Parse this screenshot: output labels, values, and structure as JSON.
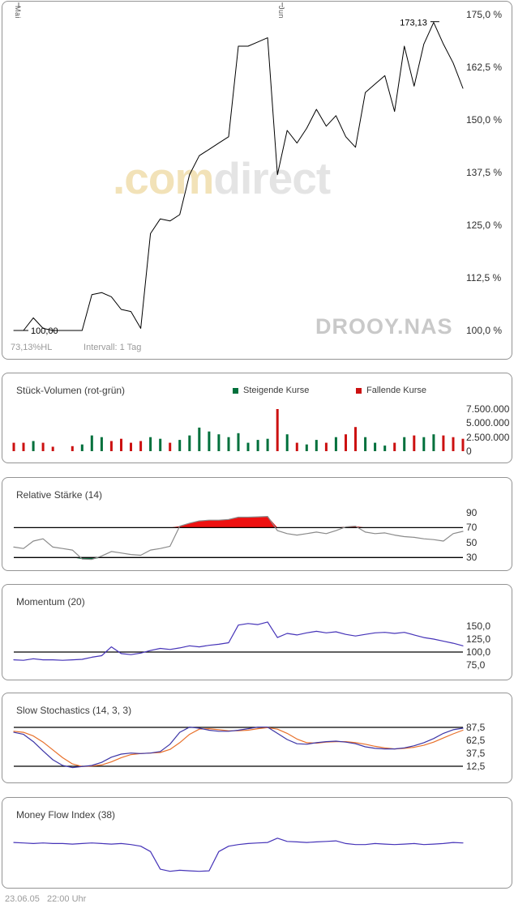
{
  "watermark": {
    "com": ".com",
    "direct": "direct",
    "symbol": "DROOY.NAS"
  },
  "footer": {
    "timestamp": "23.06.05   22:00 Uhr"
  },
  "chart_data": [
    {
      "type": "line",
      "name": "price-performance",
      "title": "",
      "footer_left": "73,13%HL",
      "footer_right": "Intervall: 1 Tag",
      "x_ticks": [
        {
          "label": "Mai",
          "index": 0
        },
        {
          "label": "Jun",
          "index": 27
        }
      ],
      "ylim": [
        100,
        175
      ],
      "y_unit": "%",
      "y_ticks": [
        {
          "label": "175,0 %",
          "value": 175
        },
        {
          "label": "162,5 %",
          "value": 162.5
        },
        {
          "label": "150,0 %",
          "value": 150
        },
        {
          "label": "137,5 %",
          "value": 137.5
        },
        {
          "label": "125,0 %",
          "value": 125
        },
        {
          "label": "112,5 %",
          "value": 112.5
        },
        {
          "label": "100,0 %",
          "value": 100
        }
      ],
      "annotations": [
        {
          "text": "100,00",
          "index": 0,
          "value": 100,
          "placement": "right"
        },
        {
          "text": "173,13",
          "index": 43,
          "value": 173.13,
          "placement": "left-above"
        }
      ],
      "series": [
        {
          "name": "Kurs",
          "color": "#000000",
          "values": [
            100,
            100,
            103,
            100.5,
            100,
            100,
            100,
            100,
            108.5,
            109,
            108,
            105,
            104.5,
            100.5,
            123,
            126.5,
            126,
            127.5,
            137,
            141.5,
            143,
            144.5,
            146,
            167.5,
            167.5,
            168.5,
            169.5,
            137,
            147.5,
            144.5,
            148,
            152.5,
            148.5,
            151,
            146,
            143.5,
            156.5,
            158.5,
            160.5,
            152,
            167.5,
            158,
            168,
            173.13,
            168,
            163.5,
            157.5
          ]
        }
      ]
    },
    {
      "type": "bar",
      "name": "volume",
      "title": "Stück-Volumen (rot-grün)",
      "legend": [
        {
          "label": "Steigende Kurse",
          "color": "#00703c",
          "key": "up"
        },
        {
          "label": "Fallende Kurse",
          "color": "#cc1111",
          "key": "down"
        }
      ],
      "ylim": [
        0,
        7500000
      ],
      "y_ticks": [
        {
          "label": "7.500.000",
          "value": 7500000
        },
        {
          "label": "5.000.000",
          "value": 5000000
        },
        {
          "label": "2.500.000",
          "value": 2500000
        },
        {
          "label": "0",
          "value": 0
        }
      ],
      "values": [
        1500000,
        1500000,
        1800000,
        1500000,
        800000,
        0,
        900000,
        1200000,
        2800000,
        2500000,
        1800000,
        2200000,
        1500000,
        1800000,
        2500000,
        2200000,
        1500000,
        2000000,
        2800000,
        4200000,
        3500000,
        3000000,
        2500000,
        3200000,
        1500000,
        2000000,
        2200000,
        7500000,
        3000000,
        1500000,
        1200000,
        2000000,
        1500000,
        2500000,
        3000000,
        4300000,
        2500000,
        1500000,
        1000000,
        1500000,
        2500000,
        2800000,
        2500000,
        3000000,
        2800000,
        2500000,
        2200000
      ],
      "colors": [
        "down",
        "down",
        "up",
        "down",
        "down",
        "up",
        "down",
        "up",
        "up",
        "up",
        "down",
        "down",
        "down",
        "down",
        "up",
        "up",
        "down",
        "up",
        "up",
        "up",
        "up",
        "up",
        "up",
        "up",
        "up",
        "up",
        "up",
        "down",
        "up",
        "down",
        "up",
        "up",
        "down",
        "up",
        "down",
        "down",
        "up",
        "up",
        "up",
        "down",
        "up",
        "down",
        "up",
        "up",
        "down",
        "down",
        "down"
      ]
    },
    {
      "type": "line",
      "name": "rsi",
      "title": "Relative Stärke (14)",
      "levels": [
        70,
        30
      ],
      "fill_above": {
        "level": 70,
        "color": "#ee1111"
      },
      "fill_below": {
        "level": 30,
        "color": "#00703c"
      },
      "ylim": [
        20,
        95
      ],
      "y_ticks": [
        {
          "label": "90",
          "value": 90
        },
        {
          "label": "70",
          "value": 70
        },
        {
          "label": "50",
          "value": 50
        },
        {
          "label": "30",
          "value": 30
        }
      ],
      "series": [
        {
          "name": "RSI",
          "color": "#8a8a8a",
          "values": [
            44,
            42,
            52,
            55,
            44,
            42,
            40,
            28,
            27.5,
            32,
            38,
            36,
            34,
            33,
            40,
            42,
            45,
            72,
            76,
            79,
            80,
            80,
            81,
            84,
            84,
            84.5,
            85,
            66,
            62,
            60,
            62,
            64,
            62,
            66,
            71,
            72,
            64,
            62,
            63,
            60,
            58,
            57,
            55,
            54,
            52,
            62,
            65
          ]
        }
      ]
    },
    {
      "type": "line",
      "name": "momentum",
      "title": "Momentum (20)",
      "levels": [
        100
      ],
      "ylim": [
        70,
        170
      ],
      "y_ticks": [
        {
          "label": "150,0",
          "value": 150
        },
        {
          "label": "125,0",
          "value": 125
        },
        {
          "label": "100,0",
          "value": 100
        },
        {
          "label": "75,0",
          "value": 75
        }
      ],
      "series": [
        {
          "name": "Momentum",
          "color": "#4533b8",
          "values": [
            85,
            84,
            87,
            85,
            85,
            84,
            85,
            86,
            90,
            93,
            110,
            97,
            95,
            98,
            103,
            107,
            105,
            108,
            112,
            110,
            113,
            115,
            118,
            152,
            155,
            153,
            158,
            128,
            136,
            133,
            137,
            140,
            137,
            139,
            134,
            131,
            134,
            137,
            138,
            136,
            138,
            133,
            128,
            125,
            121,
            117,
            112
          ]
        }
      ]
    },
    {
      "type": "line",
      "name": "slow-stochastics",
      "title": "Slow Stochastics (14, 3, 3)",
      "levels": [
        87.5,
        12.5
      ],
      "ylim": [
        0,
        100
      ],
      "y_ticks": [
        {
          "label": "87,5",
          "value": 87.5
        },
        {
          "label": "62,5",
          "value": 62.5
        },
        {
          "label": "37,5",
          "value": 37.5
        },
        {
          "label": "12,5",
          "value": 12.5
        }
      ],
      "series": [
        {
          "name": "%D",
          "color": "#e8702a",
          "values": [
            80,
            78,
            71,
            59,
            44,
            29,
            17,
            12,
            13,
            15,
            21,
            29,
            35,
            37,
            38,
            39,
            45,
            58,
            74,
            84,
            85,
            83,
            81,
            81,
            82,
            85,
            87,
            84,
            76,
            65,
            58,
            57,
            59,
            60,
            60,
            58,
            55,
            51,
            48,
            46,
            47,
            49,
            53,
            59,
            67,
            75,
            82
          ]
        },
        {
          "name": "%K",
          "color": "#3c35a6",
          "values": [
            78,
            74,
            60,
            42,
            25,
            14,
            10,
            12,
            14,
            20,
            30,
            36,
            38,
            37,
            38,
            41,
            55,
            78,
            88,
            86,
            82,
            80,
            80,
            82,
            85,
            88,
            88,
            76,
            64,
            56,
            55,
            58,
            60,
            61,
            59,
            56,
            50,
            47,
            46,
            46,
            48,
            52,
            58,
            66,
            76,
            83,
            86
          ]
        }
      ]
    },
    {
      "type": "line",
      "name": "money-flow-index",
      "title": "Money Flow Index (38)",
      "levels": [],
      "ylim": [
        0,
        100
      ],
      "y_ticks": [],
      "series": [
        {
          "name": "MFI",
          "color": "#4533b8",
          "values": [
            62,
            61,
            60,
            61,
            60,
            60,
            59,
            60,
            61,
            60,
            59,
            60,
            58,
            55,
            45,
            12,
            8,
            10,
            9,
            8,
            9,
            45,
            55,
            58,
            60,
            61,
            62,
            70,
            64,
            63,
            62,
            63,
            64,
            65,
            60,
            58,
            58,
            60,
            59,
            58,
            59,
            60,
            58,
            59,
            60,
            62,
            61
          ]
        }
      ]
    }
  ]
}
